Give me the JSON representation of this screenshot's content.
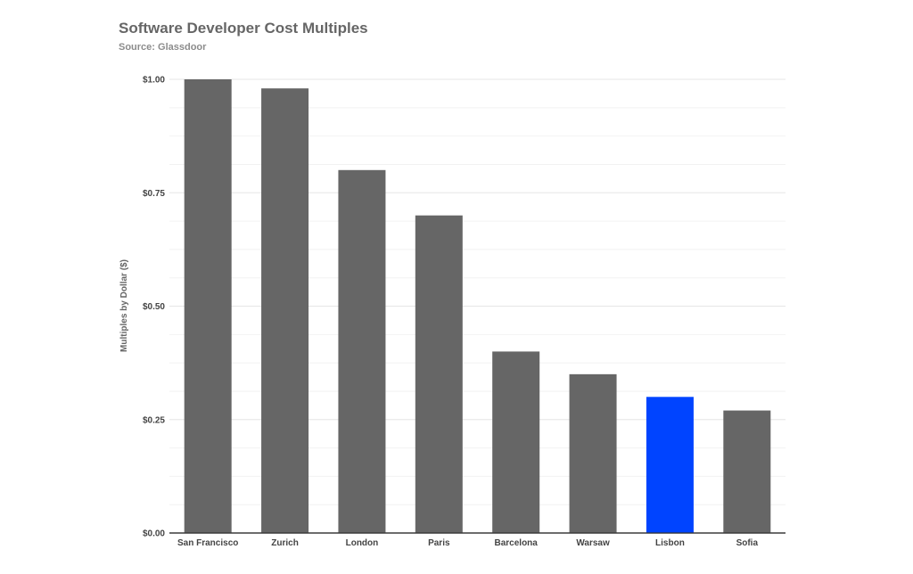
{
  "chart_data": {
    "type": "bar",
    "title": "Software Developer Cost Multiples",
    "subtitle": "Source: Glassdoor",
    "xlabel": "",
    "ylabel": "Multiples by Dollar ($)",
    "ylim": [
      0,
      1
    ],
    "yticks": [
      0,
      0.25,
      0.5,
      0.75,
      1.0
    ],
    "ytick_labels": [
      "$0.00",
      "$0.25",
      "$0.50",
      "$0.75",
      "$1.00"
    ],
    "grid": true,
    "categories": [
      "San Francisco",
      "Zurich",
      "London",
      "Paris",
      "Barcelona",
      "Warsaw",
      "Lisbon",
      "Sofia"
    ],
    "values": [
      1.0,
      0.98,
      0.8,
      0.7,
      0.4,
      0.35,
      0.3,
      0.27
    ],
    "colors": {
      "default_bar": "#666666",
      "highlight_bar": "#0044ff",
      "gridline": "#e6e6e6",
      "axis": "#333333"
    },
    "highlight_category": "Lisbon"
  }
}
